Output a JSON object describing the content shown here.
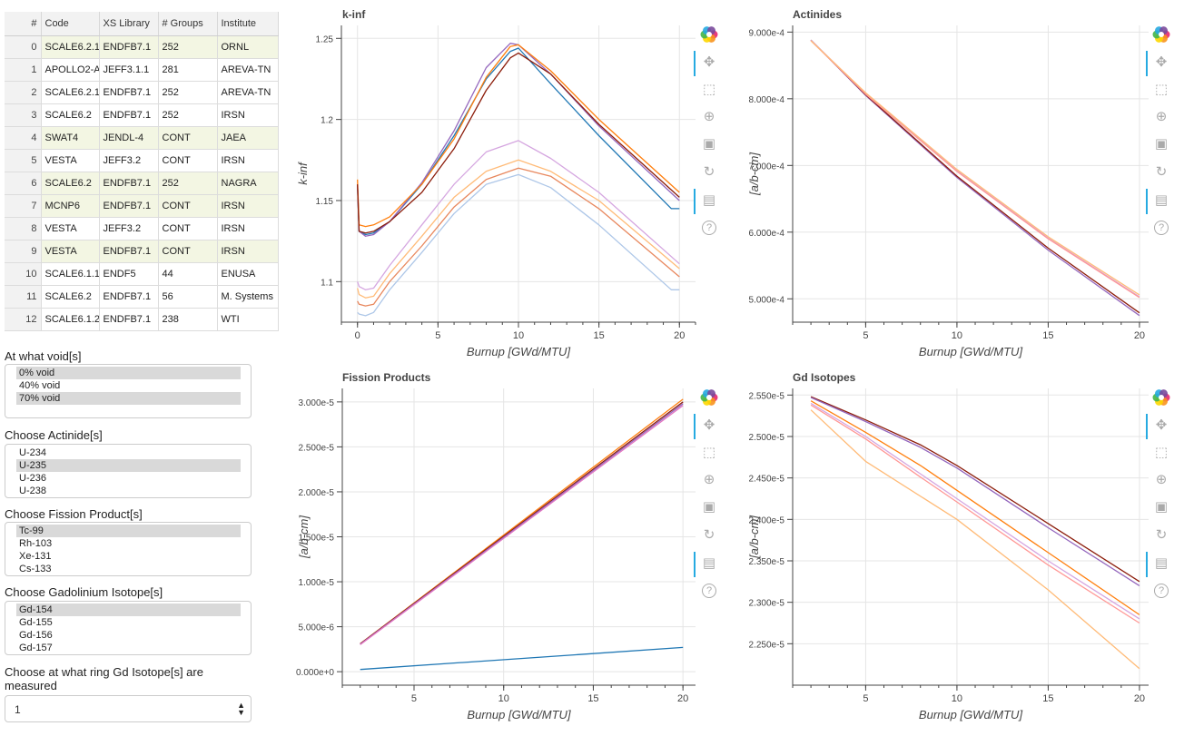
{
  "table": {
    "headers": [
      "#",
      "Code",
      "XS Library",
      "# Groups",
      "Institute"
    ],
    "rows": [
      {
        "idx": "0",
        "code": "SCALE6.2.1",
        "lib": "ENDFB7.1",
        "groups": "252",
        "inst": "ORNL",
        "selected": true
      },
      {
        "idx": "1",
        "code": "APOLLO2-A",
        "lib": "JEFF3.1.1",
        "groups": "281",
        "inst": "AREVA-TN",
        "selected": false
      },
      {
        "idx": "2",
        "code": "SCALE6.2.1",
        "lib": "ENDFB7.1",
        "groups": "252",
        "inst": "AREVA-TN",
        "selected": false
      },
      {
        "idx": "3",
        "code": "SCALE6.2",
        "lib": "ENDFB7.1",
        "groups": "252",
        "inst": "IRSN",
        "selected": false
      },
      {
        "idx": "4",
        "code": "SWAT4",
        "lib": "JENDL-4",
        "groups": "CONT",
        "inst": "JAEA",
        "selected": true
      },
      {
        "idx": "5",
        "code": "VESTA",
        "lib": "JEFF3.2",
        "groups": "CONT",
        "inst": "IRSN",
        "selected": false
      },
      {
        "idx": "6",
        "code": "SCALE6.2",
        "lib": "ENDFB7.1",
        "groups": "252",
        "inst": "NAGRA",
        "selected": true
      },
      {
        "idx": "7",
        "code": "MCNP6",
        "lib": "ENDFB7.1",
        "groups": "CONT",
        "inst": "IRSN",
        "selected": true
      },
      {
        "idx": "8",
        "code": "VESTA",
        "lib": "JEFF3.2",
        "groups": "CONT",
        "inst": "IRSN",
        "selected": false
      },
      {
        "idx": "9",
        "code": "VESTA",
        "lib": "ENDFB7.1",
        "groups": "CONT",
        "inst": "IRSN",
        "selected": true
      },
      {
        "idx": "10",
        "code": "SCALE6.1.1",
        "lib": "ENDF5",
        "groups": "44",
        "inst": "ENUSA",
        "selected": false
      },
      {
        "idx": "11",
        "code": "SCALE6.2",
        "lib": "ENDFB7.1",
        "groups": "56",
        "inst": "M. Systems",
        "selected": false
      },
      {
        "idx": "12",
        "code": "SCALE6.1.2",
        "lib": "ENDFB7.1",
        "groups": "238",
        "inst": "WTI",
        "selected": false
      }
    ]
  },
  "controls": {
    "void": {
      "label": "At what void[s]",
      "options": [
        {
          "text": "0% void",
          "selected": true
        },
        {
          "text": "40% void",
          "selected": false
        },
        {
          "text": "70% void",
          "selected": true
        }
      ]
    },
    "actinide": {
      "label": "Choose Actinide[s]",
      "options": [
        {
          "text": "U-234",
          "selected": false
        },
        {
          "text": "U-235",
          "selected": true
        },
        {
          "text": "U-236",
          "selected": false
        },
        {
          "text": "U-238",
          "selected": false
        }
      ]
    },
    "fission": {
      "label": "Choose Fission Product[s]",
      "options": [
        {
          "text": "Tc-99",
          "selected": true
        },
        {
          "text": "Rh-103",
          "selected": false
        },
        {
          "text": "Xe-131",
          "selected": false
        },
        {
          "text": "Cs-133",
          "selected": false
        }
      ]
    },
    "gd": {
      "label": "Choose Gadolinium Isotope[s]",
      "options": [
        {
          "text": "Gd-154",
          "selected": true
        },
        {
          "text": "Gd-155",
          "selected": false
        },
        {
          "text": "Gd-156",
          "selected": false
        },
        {
          "text": "Gd-157",
          "selected": false
        }
      ]
    },
    "ring": {
      "label": "Choose at what ring Gd Isotope[s] are measured",
      "value": "1"
    }
  },
  "toolbar_icons": [
    "bokeh-logo-icon",
    "pan-icon",
    "box-zoom-icon",
    "wheel-zoom-icon",
    "save-icon",
    "reset-icon",
    "hover-icon",
    "help-icon"
  ],
  "chart_data": [
    {
      "type": "line",
      "title": "k-inf",
      "xlabel": "Burnup [GWd/MTU]",
      "ylabel": "k-inf",
      "xlim": [
        -1,
        21
      ],
      "ylim": [
        1.075,
        1.258
      ],
      "xticks": [
        0,
        5,
        10,
        15,
        20
      ],
      "yticks": [
        1.1,
        1.15,
        1.2,
        1.25
      ],
      "ytick_labels": [
        "1.1",
        "1.15",
        "1.2",
        "1.25"
      ],
      "grid": true,
      "series": [
        {
          "color": "#1f77b4",
          "x": [
            0,
            0.1,
            0.5,
            1,
            2,
            4,
            6,
            8,
            9.5,
            10,
            12,
            15,
            19.5,
            20
          ],
          "y": [
            1.16,
            1.131,
            1.129,
            1.13,
            1.137,
            1.16,
            1.19,
            1.225,
            1.242,
            1.244,
            1.222,
            1.19,
            1.145,
            1.145
          ]
        },
        {
          "color": "#9467bd",
          "x": [
            0,
            0.1,
            0.5,
            1,
            2,
            4,
            6,
            8,
            9.5,
            10,
            12,
            15,
            20
          ],
          "y": [
            1.16,
            1.131,
            1.128,
            1.129,
            1.137,
            1.161,
            1.193,
            1.232,
            1.247,
            1.246,
            1.228,
            1.196,
            1.15
          ]
        },
        {
          "color": "#ff7f0e",
          "x": [
            0,
            0.1,
            0.5,
            1,
            2,
            4,
            6,
            8,
            9.5,
            10,
            12,
            15,
            20
          ],
          "y": [
            1.163,
            1.135,
            1.134,
            1.135,
            1.14,
            1.16,
            1.188,
            1.226,
            1.245,
            1.246,
            1.23,
            1.2,
            1.155
          ]
        },
        {
          "color": "#8c1d0b",
          "x": [
            0,
            0.1,
            0.5,
            1,
            2,
            4,
            6,
            8,
            9.5,
            10,
            12,
            15,
            20
          ],
          "y": [
            1.16,
            1.131,
            1.13,
            1.131,
            1.137,
            1.155,
            1.182,
            1.218,
            1.238,
            1.241,
            1.228,
            1.197,
            1.152
          ]
        },
        {
          "color": "#d5a6e0",
          "x": [
            0,
            0.1,
            0.5,
            1,
            2,
            4,
            6,
            8,
            10,
            12,
            15,
            20
          ],
          "y": [
            1.1,
            1.097,
            1.095,
            1.096,
            1.11,
            1.135,
            1.16,
            1.18,
            1.187,
            1.176,
            1.155,
            1.111
          ]
        },
        {
          "color": "#ffbb78",
          "x": [
            0,
            0.1,
            0.5,
            1,
            2,
            4,
            6,
            8,
            10,
            12,
            15,
            20
          ],
          "y": [
            1.096,
            1.092,
            1.09,
            1.091,
            1.105,
            1.128,
            1.152,
            1.168,
            1.175,
            1.168,
            1.15,
            1.108
          ]
        },
        {
          "color": "#e8875d",
          "x": [
            0,
            0.1,
            0.5,
            1,
            2,
            4,
            6,
            8,
            10,
            12,
            15,
            20
          ],
          "y": [
            1.088,
            1.086,
            1.085,
            1.086,
            1.1,
            1.122,
            1.146,
            1.163,
            1.17,
            1.165,
            1.145,
            1.103
          ]
        },
        {
          "color": "#aec7e8",
          "x": [
            0,
            0.1,
            0.5,
            1,
            2,
            4,
            6,
            8,
            10,
            12,
            15,
            19.5,
            20
          ],
          "y": [
            1.081,
            1.08,
            1.079,
            1.081,
            1.095,
            1.118,
            1.142,
            1.16,
            1.166,
            1.158,
            1.135,
            1.095,
            1.095
          ]
        }
      ]
    },
    {
      "type": "line",
      "title": "Actinides",
      "xlabel": "Burnup [GWd/MTU]",
      "ylabel": "[a/b-cm]",
      "xlim": [
        1,
        20.5
      ],
      "ylim": [
        0.000465,
        0.00091
      ],
      "xticks": [
        5,
        10,
        15,
        20
      ],
      "yticks": [
        0.0005,
        0.0006,
        0.0007,
        0.0008,
        0.0009
      ],
      "ytick_labels": [
        "5.000e-4",
        "6.000e-4",
        "7.000e-4",
        "8.000e-4",
        "9.000e-4"
      ],
      "grid": true,
      "series": [
        {
          "color": "#9467bd",
          "x": [
            2,
            5,
            10,
            15,
            20
          ],
          "y": [
            0.000888,
            0.000805,
            0.000682,
            0.000573,
            0.000475
          ]
        },
        {
          "color": "#8c1d0b",
          "x": [
            2,
            5,
            10,
            15,
            20
          ],
          "y": [
            0.000888,
            0.000806,
            0.000684,
            0.000576,
            0.000479
          ]
        },
        {
          "color": "#d5a6e0",
          "x": [
            2,
            5,
            10,
            15,
            20
          ],
          "y": [
            0.000888,
            0.000808,
            0.000692,
            0.000591,
            0.000503
          ]
        },
        {
          "color": "#ff9896",
          "x": [
            2,
            5,
            10,
            15,
            20
          ],
          "y": [
            0.000887,
            0.000807,
            0.000691,
            0.00059,
            0.000502
          ]
        },
        {
          "color": "#ffbb78",
          "x": [
            2,
            5,
            10,
            15,
            20
          ],
          "y": [
            0.000887,
            0.000809,
            0.000694,
            0.000593,
            0.000506
          ]
        }
      ]
    },
    {
      "type": "line",
      "title": "Fission Products",
      "xlabel": "Burnup [GWd/MTU]",
      "ylabel": "[a/b-cm]",
      "xlim": [
        1,
        20.7
      ],
      "ylim": [
        -1.5e-06,
        3.15e-05
      ],
      "xticks": [
        5,
        10,
        15,
        20
      ],
      "yticks": [
        0,
        5e-06,
        1e-05,
        1.5e-05,
        2e-05,
        2.5e-05,
        3e-05
      ],
      "ytick_labels": [
        "0.000e+0",
        "5.000e-6",
        "1.000e-5",
        "1.500e-5",
        "2.000e-5",
        "2.500e-5",
        "3.000e-5"
      ],
      "grid": true,
      "series": [
        {
          "color": "#1f77b4",
          "x": [
            2,
            20
          ],
          "y": [
            2.5e-07,
            2.7e-06
          ]
        },
        {
          "color": "#ff7f0e",
          "x": [
            2,
            20
          ],
          "y": [
            3.1e-06,
            3.03e-05
          ]
        },
        {
          "color": "#8c1d0b",
          "x": [
            2,
            20
          ],
          "y": [
            3.1e-06,
            3e-05
          ]
        },
        {
          "color": "#9467bd",
          "x": [
            2,
            20
          ],
          "y": [
            3.05e-06,
            2.98e-05
          ]
        },
        {
          "color": "#e377c2",
          "x": [
            2,
            20
          ],
          "y": [
            3e-06,
            2.96e-05
          ]
        }
      ]
    },
    {
      "type": "line",
      "title": "Gd Isotopes",
      "xlabel": "Burnup [GWd/MTU]",
      "ylabel": "[a/b-cm]",
      "xlim": [
        1,
        20.5
      ],
      "ylim": [
        2.2e-05,
        2.558e-05
      ],
      "xticks": [
        5,
        10,
        15,
        20
      ],
      "yticks": [
        2.25e-05,
        2.3e-05,
        2.35e-05,
        2.4e-05,
        2.45e-05,
        2.5e-05,
        2.55e-05
      ],
      "ytick_labels": [
        "2.250e-5",
        "2.300e-5",
        "2.350e-5",
        "2.400e-5",
        "2.450e-5",
        "2.500e-5",
        "2.550e-5"
      ],
      "grid": true,
      "series": [
        {
          "color": "#8c1d0b",
          "x": [
            2,
            5,
            8,
            10,
            15,
            20
          ],
          "y": [
            2.548e-05,
            2.52e-05,
            2.49e-05,
            2.465e-05,
            2.395e-05,
            2.325e-05
          ]
        },
        {
          "color": "#9467bd",
          "x": [
            2,
            5,
            8,
            10,
            15,
            20
          ],
          "y": [
            2.547e-05,
            2.518e-05,
            2.487e-05,
            2.462e-05,
            2.39e-05,
            2.32e-05
          ]
        },
        {
          "color": "#ff7f0e",
          "x": [
            2,
            5,
            8,
            10,
            15,
            20
          ],
          "y": [
            2.543e-05,
            2.505e-05,
            2.465e-05,
            2.435e-05,
            2.36e-05,
            2.285e-05
          ]
        },
        {
          "color": "#d5a6e0",
          "x": [
            2,
            5,
            8,
            10,
            15,
            20
          ],
          "y": [
            2.54e-05,
            2.5e-05,
            2.455e-05,
            2.425e-05,
            2.35e-05,
            2.28e-05
          ]
        },
        {
          "color": "#ff9896",
          "x": [
            2,
            5,
            8,
            10,
            15,
            20
          ],
          "y": [
            2.538e-05,
            2.497e-05,
            2.451e-05,
            2.421e-05,
            2.345e-05,
            2.275e-05
          ]
        },
        {
          "color": "#ffbb78",
          "x": [
            2,
            5,
            10,
            15,
            20
          ],
          "y": [
            2.532e-05,
            2.47e-05,
            2.4e-05,
            2.315e-05,
            2.22e-05
          ]
        }
      ]
    }
  ]
}
